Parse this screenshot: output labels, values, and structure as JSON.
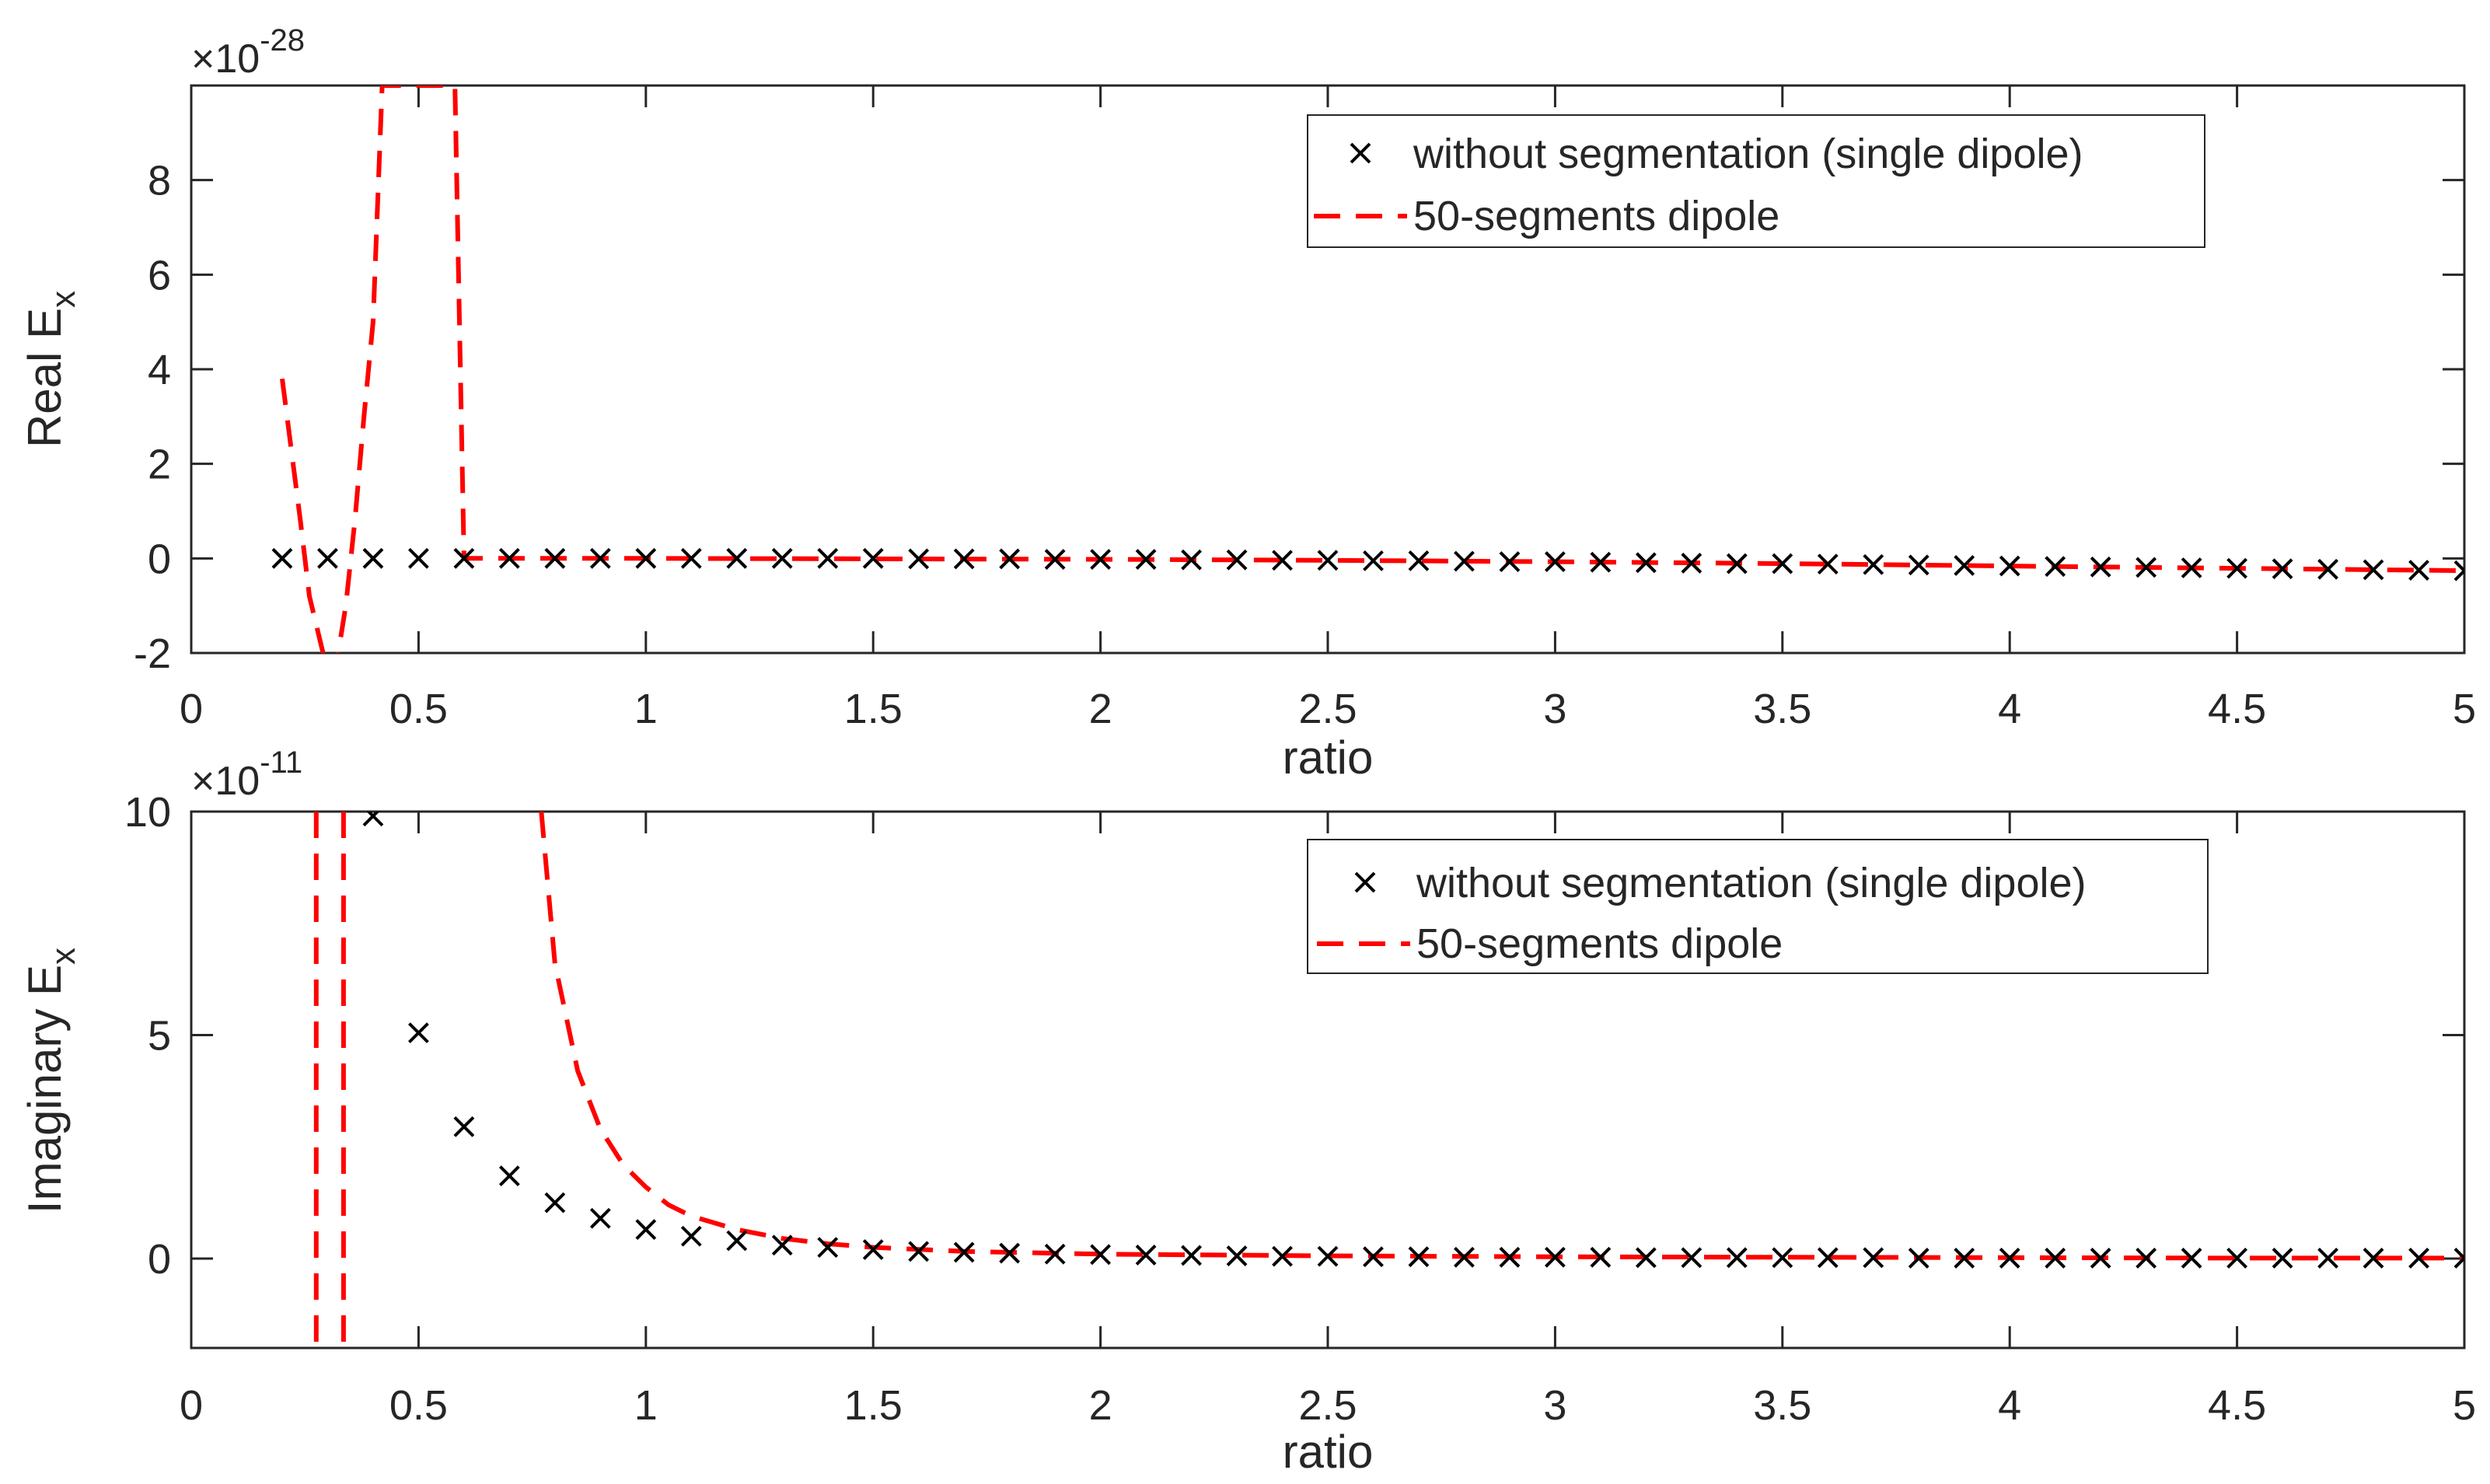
{
  "colors": {
    "marker": "#000000",
    "dashed": "#ff0000",
    "axis": "#262626"
  },
  "chart_data": [
    {
      "type": "line",
      "panel": "top",
      "ylabel": "Real E",
      "ylabel_sub": "x",
      "xlabel": "ratio",
      "multiplier_base": "×10",
      "multiplier_exp": "-28",
      "xlim": [
        0,
        5
      ],
      "ylim": [
        -2,
        10
      ],
      "xticks": [
        0,
        0.5,
        1,
        1.5,
        2,
        2.5,
        3,
        3.5,
        4,
        4.5,
        5
      ],
      "xtick_labels": [
        "0",
        "0.5",
        "1",
        "1.5",
        "2",
        "2.5",
        "3",
        "3.5",
        "4",
        "4.5",
        "5"
      ],
      "yticks": [
        -2,
        0,
        2,
        4,
        6,
        8
      ],
      "ytick_labels": [
        "-2",
        "0",
        "2",
        "4",
        "6",
        "8"
      ],
      "legend": {
        "location": "top-right",
        "entries": [
          {
            "label": "without segmentation (single dipole)",
            "style": "marker-x"
          },
          {
            "label": "50-segments dipole",
            "style": "dashed"
          }
        ]
      },
      "series": [
        {
          "name": "without segmentation (single dipole)",
          "x": [
            0.2,
            0.3,
            0.4,
            0.5,
            0.6,
            0.7,
            0.8,
            0.9,
            1.0,
            1.1,
            1.2,
            1.3,
            1.4,
            1.5,
            1.6,
            1.7,
            1.8,
            1.9,
            2.0,
            2.1,
            2.2,
            2.3,
            2.4,
            2.5,
            2.6,
            2.7,
            2.8,
            2.9,
            3.0,
            3.1,
            3.2,
            3.3,
            3.4,
            3.5,
            3.6,
            3.7,
            3.8,
            3.9,
            4.0,
            4.1,
            4.2,
            4.3,
            4.4,
            4.5,
            4.6,
            4.7,
            4.8,
            4.9,
            5.0
          ],
          "y": [
            0,
            0,
            0,
            0,
            0,
            0,
            0,
            0,
            0,
            0,
            0,
            0,
            0,
            0,
            -0.01,
            -0.01,
            -0.01,
            -0.02,
            -0.02,
            -0.02,
            -0.03,
            -0.03,
            -0.04,
            -0.04,
            -0.05,
            -0.05,
            -0.06,
            -0.07,
            -0.07,
            -0.08,
            -0.09,
            -0.1,
            -0.11,
            -0.11,
            -0.12,
            -0.13,
            -0.14,
            -0.15,
            -0.16,
            -0.17,
            -0.18,
            -0.19,
            -0.2,
            -0.21,
            -0.22,
            -0.23,
            -0.24,
            -0.25,
            -0.26
          ]
        },
        {
          "name": "50-segments dipole",
          "x": [
            0.2,
            0.22,
            0.24,
            0.26,
            0.28,
            0.3,
            0.32,
            0.34,
            0.36,
            0.38,
            0.4,
            0.42,
            0.58,
            0.59,
            0.6,
            0.7,
            0.8,
            1.0,
            1.5,
            2.0,
            2.5,
            3.0,
            3.5,
            4.0,
            4.5,
            5.0
          ],
          "y": [
            3.8,
            2.3,
            0.8,
            -0.8,
            -1.6,
            -2.4,
            -2.2,
            -1.0,
            0.8,
            3.0,
            5.0,
            10,
            10,
            5,
            0,
            0,
            0,
            0,
            -0.01,
            -0.02,
            -0.04,
            -0.07,
            -0.11,
            -0.16,
            -0.21,
            -0.26
          ]
        }
      ]
    },
    {
      "type": "line",
      "panel": "bottom",
      "ylabel": "Imaginary E",
      "ylabel_sub": "x",
      "xlabel": "ratio",
      "multiplier_base": "×10",
      "multiplier_exp": "-11",
      "xlim": [
        0,
        5
      ],
      "ylim": [
        -2,
        10
      ],
      "xticks": [
        0,
        0.5,
        1,
        1.5,
        2,
        2.5,
        3,
        3.5,
        4,
        4.5,
        5
      ],
      "xtick_labels": [
        "0",
        "0.5",
        "1",
        "1.5",
        "2",
        "2.5",
        "3",
        "3.5",
        "4",
        "4.5",
        "5"
      ],
      "yticks": [
        0,
        5,
        10
      ],
      "ytick_labels": [
        "0",
        "5",
        "10"
      ],
      "legend": {
        "location": "top-right",
        "entries": [
          {
            "label": "without segmentation (single dipole)",
            "style": "marker-x"
          },
          {
            "label": "50-segments dipole",
            "style": "dashed"
          }
        ]
      },
      "series": [
        {
          "name": "without segmentation (single dipole)",
          "x": [
            0.4,
            0.5,
            0.6,
            0.7,
            0.8,
            0.9,
            1.0,
            1.1,
            1.2,
            1.3,
            1.4,
            1.5,
            1.6,
            1.7,
            1.8,
            1.9,
            2.0,
            2.1,
            2.2,
            2.3,
            2.4,
            2.5,
            2.6,
            2.7,
            2.8,
            2.9,
            3.0,
            3.1,
            3.2,
            3.3,
            3.4,
            3.5,
            3.6,
            3.7,
            3.8,
            3.9,
            4.0,
            4.1,
            4.2,
            4.3,
            4.4,
            4.5,
            4.6,
            4.7,
            4.8,
            4.9,
            5.0
          ],
          "y": [
            9.9,
            5.05,
            2.95,
            1.85,
            1.25,
            0.9,
            0.65,
            0.5,
            0.4,
            0.3,
            0.25,
            0.2,
            0.16,
            0.14,
            0.12,
            0.1,
            0.09,
            0.08,
            0.07,
            0.06,
            0.05,
            0.05,
            0.04,
            0.04,
            0.03,
            0.03,
            0.03,
            0.03,
            0.02,
            0.02,
            0.02,
            0.02,
            0.02,
            0.02,
            0.01,
            0.01,
            0.01,
            0.01,
            0.01,
            0.01,
            0.01,
            0.01,
            0.01,
            0.01,
            0.01,
            0.01,
            0.01
          ]
        },
        {
          "name": "50-segments dipole",
          "x": [
            0.77,
            0.8,
            0.85,
            0.9,
            0.95,
            1.0,
            1.05,
            1.1,
            1.2,
            1.3,
            1.4,
            1.5,
            1.7,
            2.0,
            2.5,
            3.0,
            3.5,
            4.0,
            4.5,
            5.0
          ],
          "y": [
            10,
            6.6,
            4.2,
            2.9,
            2.1,
            1.6,
            1.2,
            0.95,
            0.65,
            0.45,
            0.33,
            0.25,
            0.16,
            0.1,
            0.06,
            0.04,
            0.03,
            0.02,
            0.01,
            0.01
          ]
        },
        {
          "name": "50-segments dipole (left spike a)",
          "x": [
            0.275,
            0.275
          ],
          "y": [
            10,
            -2
          ]
        },
        {
          "name": "50-segments dipole (left spike b)",
          "x": [
            0.335,
            0.335
          ],
          "y": [
            10,
            -2
          ]
        }
      ]
    }
  ]
}
